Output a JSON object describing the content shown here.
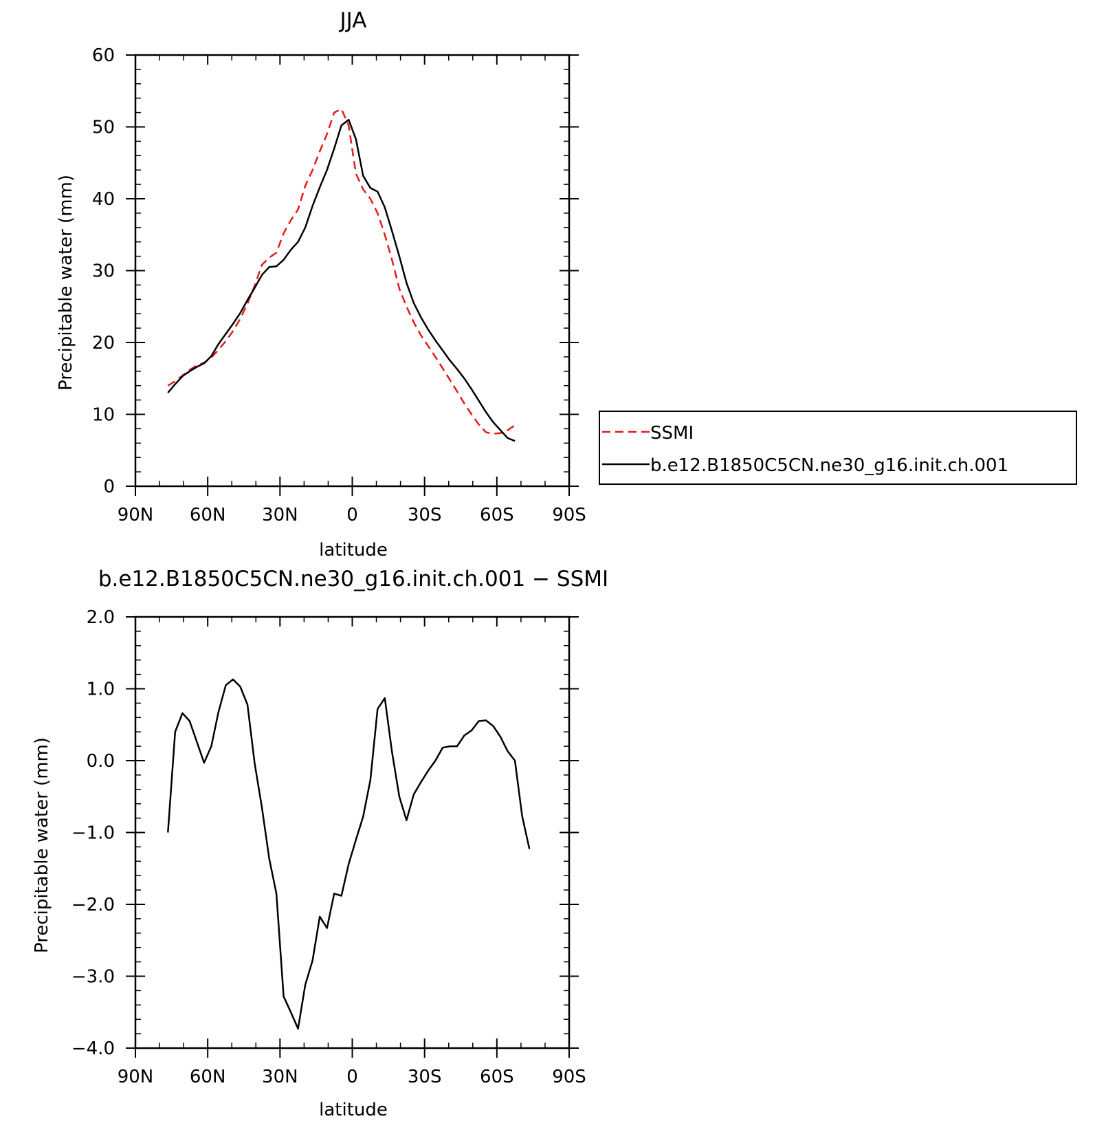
{
  "chart_data": [
    {
      "type": "line",
      "title": "JJA",
      "xlabel": "latitude",
      "ylabel": "Precipitable water (mm)",
      "xlim": [
        90,
        -90
      ],
      "ylim": [
        0,
        60
      ],
      "x_ticks": [
        90,
        60,
        30,
        0,
        -30,
        -60,
        -90
      ],
      "x_tick_labels": [
        "90N",
        "60N",
        "30N",
        "0",
        "30S",
        "60S",
        "90S"
      ],
      "y_ticks": [
        0,
        10,
        20,
        30,
        40,
        50,
        60
      ],
      "y_tick_labels": [
        "0",
        "10",
        "20",
        "30",
        "40",
        "50",
        "60"
      ],
      "grid": false,
      "legend_position": "right",
      "series": [
        {
          "name": "SSMI",
          "color": "#e41a1c",
          "dash": "dashed",
          "points": [
            [
              76.5,
              14
            ],
            [
              73.5,
              14.6
            ],
            [
              70.5,
              15.4
            ],
            [
              67.5,
              16.2
            ],
            [
              64.5,
              16.8
            ],
            [
              61.5,
              17.2
            ],
            [
              58.5,
              17.9
            ],
            [
              55.5,
              19
            ],
            [
              52.5,
              20.2
            ],
            [
              49.5,
              21.6
            ],
            [
              46.5,
              23.3
            ],
            [
              43.5,
              25.4
            ],
            [
              40.5,
              27.9
            ],
            [
              37.5,
              30.8
            ],
            [
              34.5,
              31.8
            ],
            [
              31.5,
              32.5
            ],
            [
              28.5,
              35.2
            ],
            [
              25.5,
              37
            ],
            [
              22.5,
              38.5
            ],
            [
              19.5,
              41.8
            ],
            [
              16.5,
              44
            ],
            [
              13.5,
              46.6
            ],
            [
              10.5,
              49
            ],
            [
              7.5,
              52
            ],
            [
              4.5,
              52.5
            ],
            [
              1.5,
              50.2
            ],
            [
              -1.5,
              43.5
            ],
            [
              -4.5,
              41.3
            ],
            [
              -7.5,
              40
            ],
            [
              -10.5,
              38
            ],
            [
              -13.5,
              35
            ],
            [
              -16.5,
              31.5
            ],
            [
              -19.5,
              27.5
            ],
            [
              -22.5,
              25
            ],
            [
              -25.5,
              22.8
            ],
            [
              -28.5,
              21
            ],
            [
              -31.5,
              19.5
            ],
            [
              -34.5,
              18
            ],
            [
              -37.5,
              16.4
            ],
            [
              -40.5,
              14.8
            ],
            [
              -43.5,
              13.2
            ],
            [
              -46.5,
              11.5
            ],
            [
              -49.5,
              10
            ],
            [
              -52.5,
              8.6
            ],
            [
              -55.5,
              7.5
            ],
            [
              -58.5,
              7.3
            ],
            [
              -61.5,
              7.4
            ],
            [
              -64.5,
              7.8
            ],
            [
              -67.5,
              8.5
            ]
          ]
        },
        {
          "name": "b.e12.B1850C5CN.ne30_g16.init.ch.001",
          "color": "#000000",
          "dash": "solid",
          "points": [
            [
              76.5,
              13
            ],
            [
              73.5,
              14.2
            ],
            [
              70.5,
              15.3
            ],
            [
              67.5,
              16
            ],
            [
              64.5,
              16.6
            ],
            [
              61.5,
              17.1
            ],
            [
              58.5,
              18.1
            ],
            [
              55.5,
              19.8
            ],
            [
              52.5,
              21.2
            ],
            [
              49.5,
              22.6
            ],
            [
              46.5,
              24.1
            ],
            [
              43.5,
              25.9
            ],
            [
              40.5,
              27.6
            ],
            [
              37.5,
              29.4
            ],
            [
              34.5,
              30.5
            ],
            [
              31.5,
              30.6
            ],
            [
              28.5,
              31.5
            ],
            [
              25.5,
              32.9
            ],
            [
              22.5,
              34
            ],
            [
              19.5,
              36
            ],
            [
              16.5,
              39
            ],
            [
              13.5,
              41.6
            ],
            [
              10.5,
              44
            ],
            [
              7.5,
              47
            ],
            [
              4.5,
              50.2
            ],
            [
              1.5,
              51
            ],
            [
              -1.5,
              48.3
            ],
            [
              -4.5,
              43.2
            ],
            [
              -7.5,
              41.5
            ],
            [
              -10.5,
              41
            ],
            [
              -13.5,
              38.8
            ],
            [
              -16.5,
              35.5
            ],
            [
              -19.5,
              32
            ],
            [
              -22.5,
              28.3
            ],
            [
              -25.5,
              25.5
            ],
            [
              -28.5,
              23.5
            ],
            [
              -31.5,
              21.8
            ],
            [
              -34.5,
              20.3
            ],
            [
              -37.5,
              18.9
            ],
            [
              -40.5,
              17.5
            ],
            [
              -43.5,
              16.3
            ],
            [
              -46.5,
              15
            ],
            [
              -49.5,
              13.5
            ],
            [
              -52.5,
              11.9
            ],
            [
              -55.5,
              10.3
            ],
            [
              -58.5,
              8.9
            ],
            [
              -61.5,
              7.8
            ],
            [
              -64.5,
              6.7
            ],
            [
              -67.5,
              6.3
            ]
          ]
        }
      ]
    },
    {
      "type": "line",
      "title": "b.e12.B1850C5CN.ne30_g16.init.ch.001 − SSMI",
      "xlabel": "latitude",
      "ylabel": "Precipitable water (mm)",
      "xlim": [
        90,
        -90
      ],
      "ylim": [
        -4,
        2
      ],
      "x_ticks": [
        90,
        60,
        30,
        0,
        -30,
        -60,
        -90
      ],
      "x_tick_labels": [
        "90N",
        "60N",
        "30N",
        "0",
        "30S",
        "60S",
        "90S"
      ],
      "y_ticks": [
        -4,
        -3,
        -2,
        -1,
        0,
        1,
        2
      ],
      "y_tick_labels": [
        "−4.0",
        "−3.0",
        "−2.0",
        "−1.0",
        "0.0",
        "1.0",
        "2.0"
      ],
      "grid": false,
      "series": [
        {
          "color": "#000000",
          "dash": "solid",
          "points": [
            [
              76.5,
              -1
            ],
            [
              73.5,
              0.4
            ],
            [
              70.5,
              0.66
            ],
            [
              67.5,
              0.55
            ],
            [
              64.5,
              0.26
            ],
            [
              61.5,
              -0.03
            ],
            [
              58.5,
              0.2
            ],
            [
              55.5,
              0.68
            ],
            [
              52.5,
              1.05
            ],
            [
              49.5,
              1.13
            ],
            [
              46.5,
              1.03
            ],
            [
              43.5,
              0.78
            ],
            [
              40.5,
              -0.04
            ],
            [
              37.5,
              -0.65
            ],
            [
              34.5,
              -1.36
            ],
            [
              31.5,
              -1.85
            ],
            [
              28.5,
              -3.28
            ],
            [
              25.5,
              -3.5
            ],
            [
              22.5,
              -3.73
            ],
            [
              19.5,
              -3.12
            ],
            [
              16.5,
              -2.78
            ],
            [
              13.5,
              -2.17
            ],
            [
              10.5,
              -2.33
            ],
            [
              7.5,
              -1.85
            ],
            [
              4.5,
              -1.88
            ],
            [
              1.5,
              -1.44
            ],
            [
              -1.5,
              -1.1
            ],
            [
              -4.5,
              -0.78
            ],
            [
              -7.5,
              -0.27
            ],
            [
              -10.5,
              0.72
            ],
            [
              -13.5,
              0.87
            ],
            [
              -16.5,
              0.12
            ],
            [
              -19.5,
              -0.5
            ],
            [
              -22.5,
              -0.83
            ],
            [
              -25.5,
              -0.47
            ],
            [
              -28.5,
              -0.3
            ],
            [
              -31.5,
              -0.14
            ],
            [
              -34.5,
              0
            ],
            [
              -37.5,
              0.18
            ],
            [
              -40.5,
              0.2
            ],
            [
              -43.5,
              0.2
            ],
            [
              -46.5,
              0.35
            ],
            [
              -49.5,
              0.42
            ],
            [
              -52.5,
              0.55
            ],
            [
              -55.5,
              0.56
            ],
            [
              -58.5,
              0.48
            ],
            [
              -61.5,
              0.33
            ],
            [
              -64.5,
              0.13
            ],
            [
              -67.5,
              0
            ],
            [
              -70.5,
              -0.77
            ],
            [
              -73.5,
              -1.23
            ]
          ]
        }
      ]
    }
  ]
}
